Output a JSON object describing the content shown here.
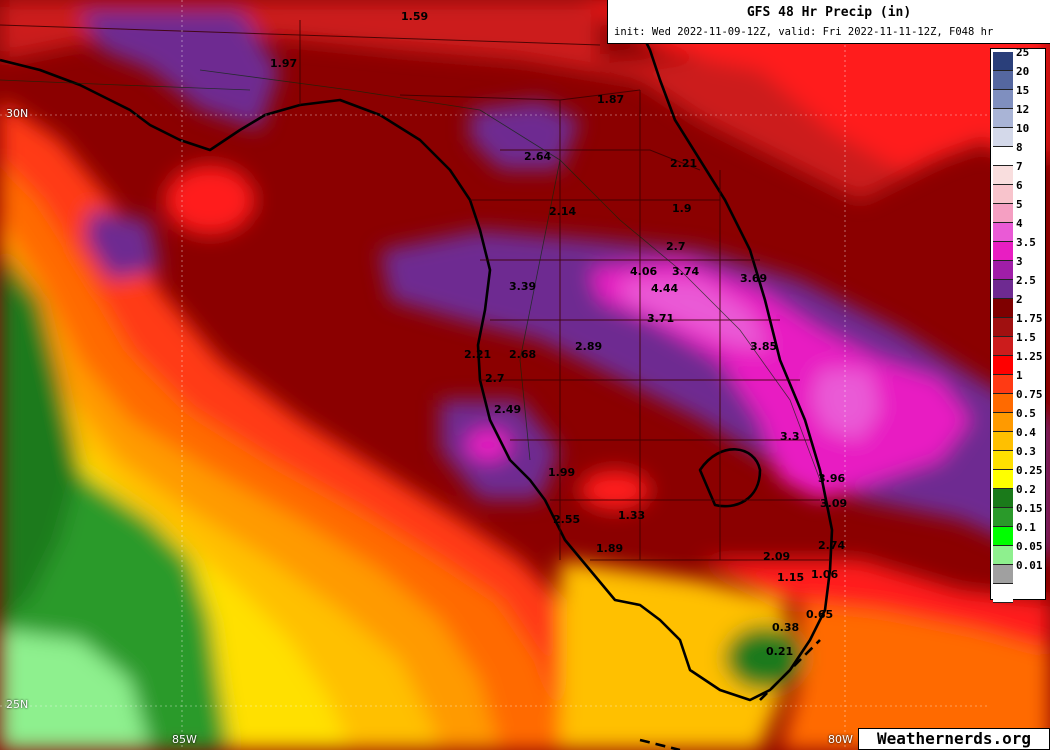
{
  "title": "GFS 48 Hr Precip (in)",
  "subtitle": "init: Wed 2022-11-09-12Z, valid: Fri 2022-11-11-12Z, F048 hr",
  "credit": "Weathernerds.org",
  "grid_labels": {
    "lat_30": "30N",
    "lat_25": "25N",
    "lon_85": "85W",
    "lon_80": "80W"
  },
  "legend": [
    {
      "label": "25",
      "color": "#2a3f7a"
    },
    {
      "label": "20",
      "color": "#5567a0"
    },
    {
      "label": "15",
      "color": "#7f8fbf"
    },
    {
      "label": "12",
      "color": "#a9b4d6"
    },
    {
      "label": "10",
      "color": "#d4d9ea"
    },
    {
      "label": "8",
      "color": "#ffffff"
    },
    {
      "label": "7",
      "color": "#f9dede"
    },
    {
      "label": "6",
      "color": "#f8c4cc"
    },
    {
      "label": "5",
      "color": "#f59fc2"
    },
    {
      "label": "4",
      "color": "#ea5ad6"
    },
    {
      "label": "3.5",
      "color": "#e81ec2"
    },
    {
      "label": "3",
      "color": "#a01ea8"
    },
    {
      "label": "2.5",
      "color": "#6e2a91"
    },
    {
      "label": "2",
      "color": "#7f0000"
    },
    {
      "label": "1.75",
      "color": "#a01010"
    },
    {
      "label": "1.5",
      "color": "#cc1c1c"
    },
    {
      "label": "1.25",
      "color": "#ff0000"
    },
    {
      "label": "1",
      "color": "#ff3a14"
    },
    {
      "label": "0.75",
      "color": "#ff6a00"
    },
    {
      "label": "0.5",
      "color": "#ff9a00"
    },
    {
      "label": "0.4",
      "color": "#ffc000"
    },
    {
      "label": "0.3",
      "color": "#ffe000"
    },
    {
      "label": "0.25",
      "color": "#ffff00"
    },
    {
      "label": "0.2",
      "color": "#1a7a1a"
    },
    {
      "label": "0.15",
      "color": "#2a9a2a"
    },
    {
      "label": "0.1",
      "color": "#00ff00"
    },
    {
      "label": "0.05",
      "color": "#8ef08e"
    },
    {
      "label": "0.01",
      "color": "#a0a0a0"
    },
    {
      "label": "",
      "color": "#ffffff"
    }
  ],
  "point_values": [
    {
      "label": "1.59"
    },
    {
      "label": "1.97"
    },
    {
      "label": "1.87"
    },
    {
      "label": "2.64"
    },
    {
      "label": "2.21"
    },
    {
      "label": "2.14"
    },
    {
      "label": "1.9"
    },
    {
      "label": "2.7"
    },
    {
      "label": "4.06"
    },
    {
      "label": "3.74"
    },
    {
      "label": "3.69"
    },
    {
      "label": "3.39"
    },
    {
      "label": "4.44"
    },
    {
      "label": "3.71"
    },
    {
      "label": "2.21"
    },
    {
      "label": "2.68"
    },
    {
      "label": "2.89"
    },
    {
      "label": "3.85"
    },
    {
      "label": "2.7"
    },
    {
      "label": "2.49"
    },
    {
      "label": "3.3"
    },
    {
      "label": "1.99"
    },
    {
      "label": "3.96"
    },
    {
      "label": "3.09"
    },
    {
      "label": "1.33"
    },
    {
      "label": "2.55"
    },
    {
      "label": "2.74"
    },
    {
      "label": "1.89"
    },
    {
      "label": "2.09"
    },
    {
      "label": "1.15"
    },
    {
      "label": "1.06"
    },
    {
      "label": "0.65"
    },
    {
      "label": "0.38"
    },
    {
      "label": "0.21"
    }
  ]
}
